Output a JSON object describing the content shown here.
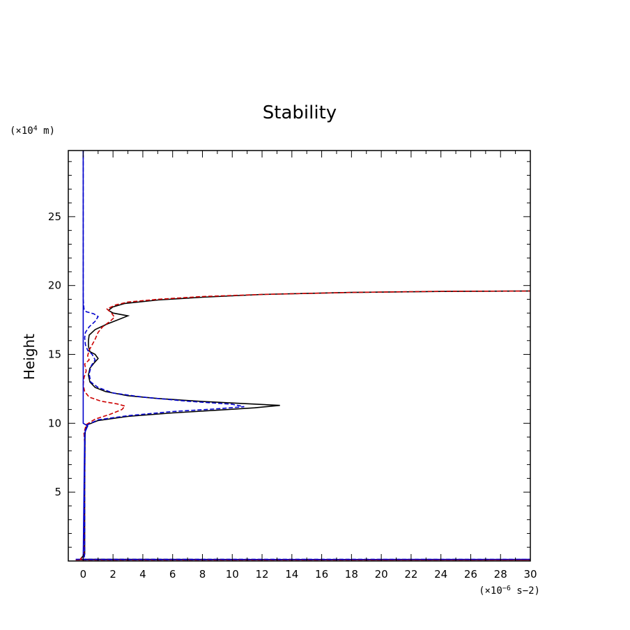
{
  "chart_data": {
    "type": "line",
    "title": "Stability",
    "xlabel": "",
    "ylabel": "Height",
    "x_unit_prefix": "(×10",
    "x_unit_exp": "−6",
    "x_unit_suffix": " s−2)",
    "y_unit_prefix": "(×10",
    "y_unit_exp": "4",
    "y_unit_suffix": " m)",
    "xlim": [
      -1,
      30
    ],
    "ylim": [
      0,
      29.8
    ],
    "x_ticks": [
      0,
      2,
      4,
      6,
      8,
      10,
      12,
      14,
      16,
      18,
      20,
      22,
      24,
      26,
      28,
      30
    ],
    "y_ticks": [
      5,
      10,
      15,
      20,
      25
    ],
    "grid": false,
    "legend": "none",
    "series": [
      {
        "color": "#000000",
        "dash": "solid",
        "points": [
          [
            -0.5,
            0.1
          ],
          [
            30,
            0.1
          ],
          [
            -0.2,
            0.12
          ],
          [
            0.1,
            0.5
          ],
          [
            0.1,
            5
          ],
          [
            0.12,
            9
          ],
          [
            0.14,
            9.5
          ],
          [
            0.3,
            9.9
          ],
          [
            1,
            10.2
          ],
          [
            3,
            10.5
          ],
          [
            6,
            10.75
          ],
          [
            9,
            10.95
          ],
          [
            11.5,
            11.12
          ],
          [
            13.2,
            11.3
          ],
          [
            11,
            11.42
          ],
          [
            8,
            11.58
          ],
          [
            5,
            11.8
          ],
          [
            3,
            12
          ],
          [
            1.5,
            12.3
          ],
          [
            0.8,
            12.6
          ],
          [
            0.45,
            13
          ],
          [
            0.35,
            13.5
          ],
          [
            0.45,
            14
          ],
          [
            0.75,
            14.4
          ],
          [
            1.0,
            14.7
          ],
          [
            0.8,
            15.0
          ],
          [
            0.45,
            15.2
          ],
          [
            0.35,
            15.6
          ],
          [
            0.35,
            16
          ],
          [
            0.4,
            16.4
          ],
          [
            0.8,
            16.8
          ],
          [
            1.6,
            17.2
          ],
          [
            2.3,
            17.5
          ],
          [
            3.0,
            17.8
          ],
          [
            2.0,
            18.0
          ],
          [
            1.7,
            18.2
          ],
          [
            2.0,
            18.45
          ],
          [
            2.8,
            18.7
          ],
          [
            5,
            18.95
          ],
          [
            8,
            19.15
          ],
          [
            12,
            19.35
          ],
          [
            18,
            19.5
          ],
          [
            24,
            19.57
          ],
          [
            30,
            19.6
          ]
        ]
      },
      {
        "color": "#cc0000",
        "dash": "dashed",
        "points": [
          [
            -0.5,
            0.08
          ],
          [
            30,
            0.08
          ],
          [
            -0.2,
            0.1
          ],
          [
            0.05,
            0.5
          ],
          [
            0.08,
            5
          ],
          [
            0.1,
            8.5
          ],
          [
            0.05,
            9.3
          ],
          [
            0.2,
            9.9
          ],
          [
            0.8,
            10.3
          ],
          [
            1.8,
            10.65
          ],
          [
            2.6,
            11.0
          ],
          [
            2.8,
            11.25
          ],
          [
            2.3,
            11.4
          ],
          [
            1.2,
            11.6
          ],
          [
            0.4,
            11.9
          ],
          [
            0.1,
            12.3
          ],
          [
            0.0,
            12.8
          ],
          [
            0.05,
            13.3
          ],
          [
            0.2,
            13.8
          ],
          [
            0.1,
            14.3
          ],
          [
            0.4,
            14.6
          ],
          [
            0.3,
            14.9
          ],
          [
            0.4,
            15.3
          ],
          [
            0.6,
            15.7
          ],
          [
            0.8,
            16.1
          ],
          [
            1.0,
            16.6
          ],
          [
            1.3,
            17.0
          ],
          [
            1.8,
            17.4
          ],
          [
            2.1,
            17.7
          ],
          [
            1.9,
            18.0
          ],
          [
            1.6,
            18.3
          ],
          [
            2.2,
            18.6
          ],
          [
            3,
            18.8
          ],
          [
            5,
            19.0
          ],
          [
            8,
            19.2
          ],
          [
            12,
            19.35
          ],
          [
            18,
            19.5
          ],
          [
            24,
            19.58
          ],
          [
            30,
            19.6
          ]
        ]
      },
      {
        "color": "#0000cc",
        "dash": "dashed",
        "points": [
          [
            -0.5,
            0.12
          ],
          [
            30,
            0.12
          ],
          [
            0.05,
            0.1
          ],
          [
            0.1,
            0.5
          ],
          [
            0.1,
            5
          ],
          [
            0.12,
            9
          ],
          [
            0.14,
            9.5
          ],
          [
            0.3,
            9.9
          ],
          [
            1,
            10.25
          ],
          [
            3,
            10.55
          ],
          [
            6,
            10.85
          ],
          [
            9,
            11.05
          ],
          [
            10.8,
            11.2
          ],
          [
            10,
            11.38
          ],
          [
            7,
            11.6
          ],
          [
            4,
            11.9
          ],
          [
            2,
            12.2
          ],
          [
            1,
            12.6
          ],
          [
            0.5,
            13
          ],
          [
            0.4,
            13.6
          ],
          [
            0.55,
            14.2
          ],
          [
            0.8,
            14.6
          ],
          [
            0.6,
            15.0
          ],
          [
            0.3,
            15.3
          ],
          [
            0.15,
            15.7
          ],
          [
            0.1,
            16.2
          ],
          [
            0.15,
            16.6
          ],
          [
            0.4,
            17.0
          ],
          [
            0.8,
            17.4
          ],
          [
            1.0,
            17.75
          ],
          [
            0.7,
            17.95
          ],
          [
            0.2,
            18.1
          ],
          [
            0.05,
            18.3
          ],
          [
            0.0,
            19
          ],
          [
            0.0,
            22
          ],
          [
            0.0,
            29.8
          ]
        ]
      },
      {
        "color": "#0000cc",
        "dash": "solid",
        "points": [
          [
            0.0,
            0.2
          ],
          [
            0.05,
            5
          ],
          [
            0.1,
            9.3
          ],
          [
            0.3,
            9.8
          ],
          [
            0.0,
            10
          ],
          [
            0.0,
            29.8
          ]
        ]
      }
    ]
  }
}
